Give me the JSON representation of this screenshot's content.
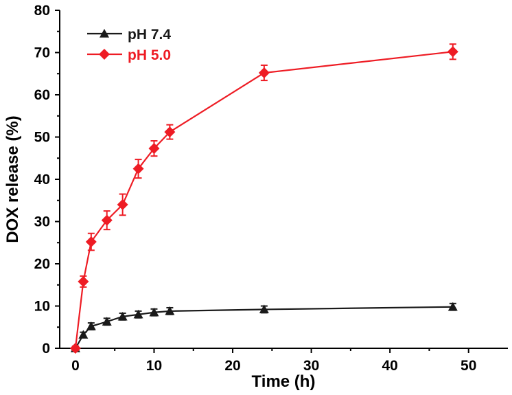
{
  "chart_data": {
    "type": "line",
    "title": "",
    "xlabel": "Time (h)",
    "ylabel": "DOX release (%)",
    "xlim": [
      -2,
      55
    ],
    "ylim": [
      0,
      80
    ],
    "xticks": [
      0,
      10,
      20,
      30,
      40,
      50
    ],
    "yticks": [
      0,
      10,
      20,
      30,
      40,
      50,
      60,
      70,
      80
    ],
    "grid": false,
    "legend_position": "top-left",
    "series": [
      {
        "name": "pH 7.4",
        "color": "#1a1a1a",
        "marker": "triangle",
        "x": [
          0,
          1,
          2,
          4,
          6,
          8,
          10,
          12,
          24,
          48
        ],
        "y": [
          0,
          3.2,
          5.2,
          6.3,
          7.5,
          8.0,
          8.5,
          8.8,
          9.2,
          9.8
        ],
        "err": [
          0.5,
          0.6,
          0.8,
          0.8,
          0.8,
          0.8,
          0.8,
          0.8,
          0.8,
          0.8
        ]
      },
      {
        "name": "pH 5.0",
        "color": "#ee1c24",
        "marker": "diamond",
        "x": [
          0,
          1,
          2,
          4,
          6,
          8,
          10,
          12,
          24,
          48
        ],
        "y": [
          0,
          15.8,
          25.2,
          30.3,
          34.0,
          42.5,
          47.3,
          51.2,
          65.2,
          70.2
        ],
        "err": [
          0.5,
          1.3,
          2.0,
          2.2,
          2.5,
          2.2,
          1.8,
          1.7,
          1.8,
          1.8
        ]
      }
    ]
  }
}
